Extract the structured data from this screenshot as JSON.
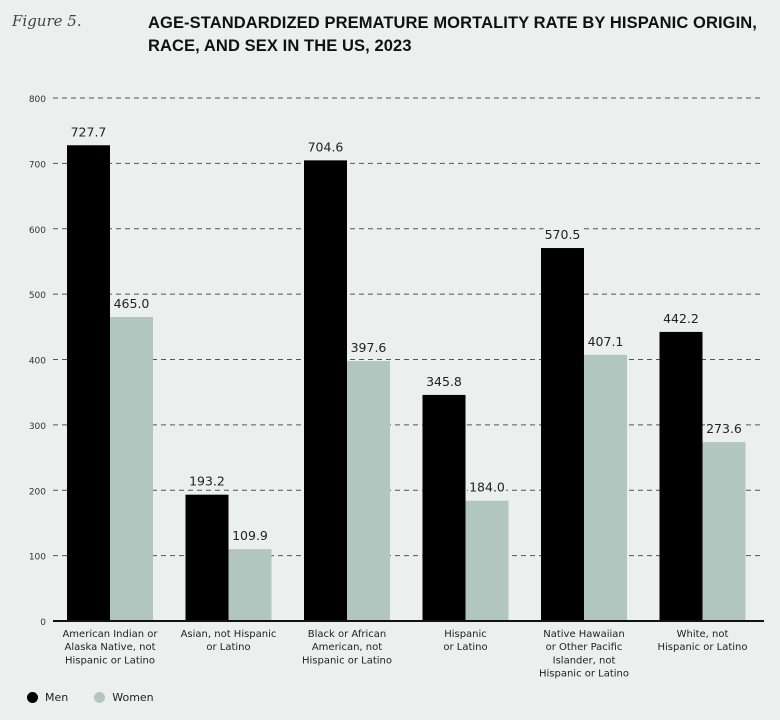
{
  "figure_label": "Figure 5.",
  "chart_data": {
    "type": "bar",
    "title": "AGE-STANDARDIZED PREMATURE MORTALITY RATE BY HISPANIC ORIGIN, RACE, AND SEX IN THE US, 2023",
    "xlabel": "",
    "ylabel": "",
    "ylim": [
      0,
      800
    ],
    "yticks": [
      "0",
      "100",
      "200",
      "300",
      "400",
      "500",
      "600",
      "700",
      "800"
    ],
    "grid": true,
    "legend_position": "bottom-left",
    "categories": [
      [
        "American Indian or",
        "Alaska Native, not",
        "Hispanic or Latino"
      ],
      [
        "Asian, not Hispanic",
        "or Latino"
      ],
      [
        "Black or African",
        "American, not",
        "Hispanic or Latino"
      ],
      [
        "Hispanic",
        "or Latino"
      ],
      [
        "Native Hawaiian",
        "or Other Pacific",
        "Islander, not",
        "Hispanic or Latino"
      ],
      [
        "White, not",
        "Hispanic or Latino"
      ]
    ],
    "series": [
      {
        "name": "Men",
        "color": "#000000",
        "values": [
          727.7,
          193.2,
          704.6,
          345.8,
          570.5,
          442.2
        ],
        "labels": [
          "727.7",
          "193.2",
          "704.6",
          "345.8",
          "570.5",
          "442.2"
        ]
      },
      {
        "name": "Women",
        "color": "#b0c6be",
        "values": [
          465.0,
          109.9,
          397.6,
          184.0,
          407.1,
          273.6
        ],
        "labels": [
          "465.0",
          "109.9",
          "397.6",
          "184.0",
          "407.1",
          "273.6"
        ]
      }
    ]
  }
}
